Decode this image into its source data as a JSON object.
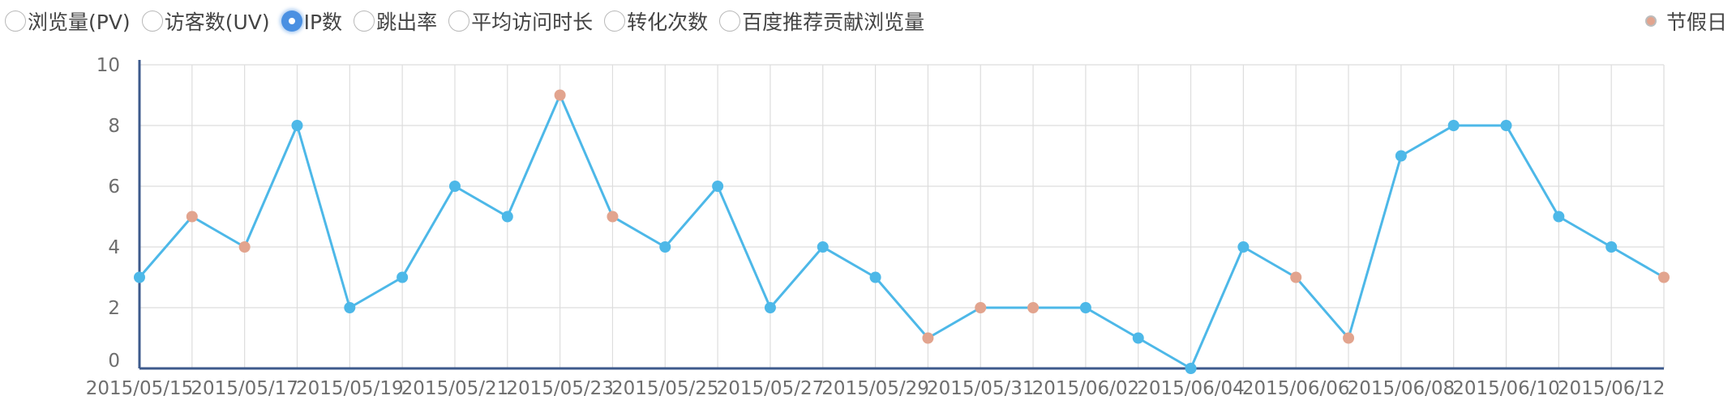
{
  "metrics": [
    {
      "label": "浏览量(PV)",
      "selected": false
    },
    {
      "label": "访客数(UV)",
      "selected": false
    },
    {
      "label": "IP数",
      "selected": true
    },
    {
      "label": "跳出率",
      "selected": false
    },
    {
      "label": "平均访问时长",
      "selected": false
    },
    {
      "label": "转化次数",
      "selected": false
    },
    {
      "label": "百度推荐贡献浏览量",
      "selected": false
    }
  ],
  "legend": {
    "label": "节假日"
  },
  "colors": {
    "line": "#4db8e8",
    "point": "#4db8e8",
    "holiday_point": "#e2a48e",
    "axis": "#3d5a8c",
    "grid": "#dddddd"
  },
  "chart_data": {
    "type": "line",
    "x": [
      "2015/05/15",
      "2015/05/16",
      "2015/05/17",
      "2015/05/18",
      "2015/05/19",
      "2015/05/20",
      "2015/05/21",
      "2015/05/22",
      "2015/05/23",
      "2015/05/24",
      "2015/05/25",
      "2015/05/26",
      "2015/05/27",
      "2015/05/28",
      "2015/05/29",
      "2015/05/30",
      "2015/05/31",
      "2015/06/01",
      "2015/06/02",
      "2015/06/03",
      "2015/06/04",
      "2015/06/05",
      "2015/06/06",
      "2015/06/07",
      "2015/06/08",
      "2015/06/09",
      "2015/06/10",
      "2015/06/11",
      "2015/06/12",
      "2015/06/13"
    ],
    "x_tick_labels": [
      "2015/05/15",
      "2015/05/17",
      "2015/05/19",
      "2015/05/21",
      "2015/05/23",
      "2015/05/25",
      "2015/05/27",
      "2015/05/29",
      "2015/05/31",
      "2015/06/02",
      "2015/06/04",
      "2015/06/06",
      "2015/06/08",
      "2015/06/10",
      "2015/06/12"
    ],
    "y_ticks": [
      0,
      2,
      4,
      6,
      8,
      10
    ],
    "series": [
      {
        "name": "IP数",
        "values": [
          3,
          5,
          4,
          8,
          2,
          3,
          6,
          5,
          9,
          5,
          4,
          6,
          2,
          4,
          3,
          1,
          2,
          2,
          2,
          1,
          0,
          4,
          3,
          1,
          7,
          8,
          8,
          5,
          4,
          3
        ]
      }
    ],
    "holidays": [
      false,
      true,
      true,
      false,
      false,
      false,
      false,
      false,
      true,
      true,
      false,
      false,
      false,
      false,
      false,
      true,
      true,
      true,
      false,
      false,
      false,
      false,
      true,
      true,
      false,
      false,
      false,
      false,
      false,
      true
    ],
    "ylim": [
      0,
      10
    ],
    "title": "",
    "xlabel": "",
    "ylabel": "",
    "grid": true,
    "legend_position": "top-right"
  }
}
